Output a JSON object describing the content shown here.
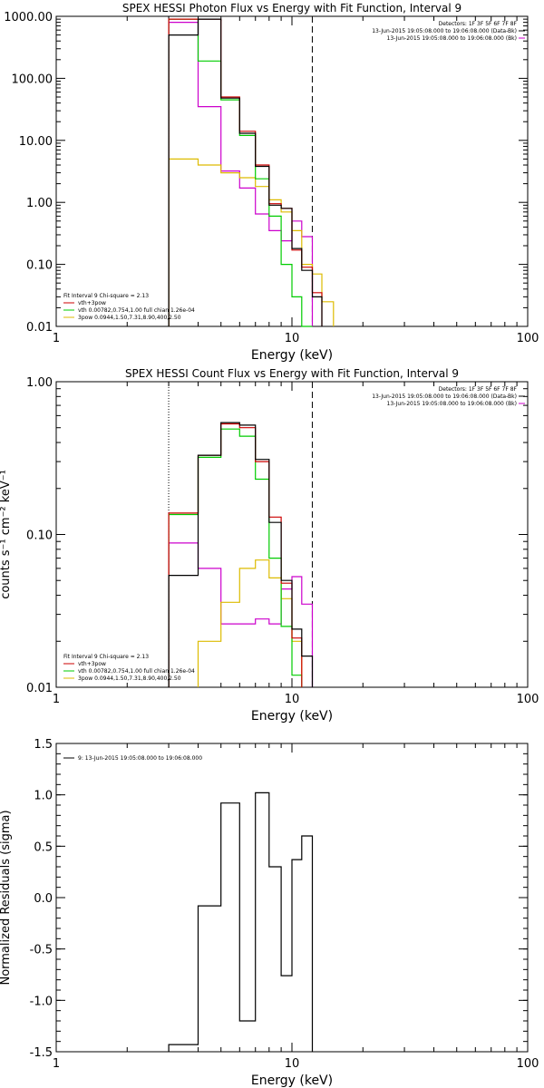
{
  "chart_data": [
    {
      "type": "line",
      "title": "SPEX HESSI Photon Flux vs Energy with Fit Function, Interval 9",
      "xlabel": "Energy (keV)",
      "ylabel": "",
      "xscale": "log",
      "yscale": "log",
      "xlim": [
        1,
        100
      ],
      "ylim": [
        0.01,
        1000
      ],
      "xticks": [
        {
          "v": 1,
          "label": "1"
        },
        {
          "v": 10,
          "label": "10"
        },
        {
          "v": 100,
          "label": "100"
        }
      ],
      "yticks": [
        {
          "v": 1000,
          "label": "1000.00"
        },
        {
          "v": 100,
          "label": "100.00"
        },
        {
          "v": 10,
          "label": "10.00"
        },
        {
          "v": 1,
          "label": "1.00"
        },
        {
          "v": 0.1,
          "label": "0.10"
        },
        {
          "v": 0.01,
          "label": "0.01"
        }
      ],
      "vlines": [
        {
          "x": 3.0,
          "style": "dotted"
        },
        {
          "x": 12.2,
          "style": "dashed"
        }
      ],
      "legend_right": [
        {
          "text": "Detectors: 1F 3F 5F 6F 7F 8F",
          "color": ""
        },
        {
          "text": "13-Jun-2015 19:05:08.000 to 19:06:08.000 (Data-Bk)",
          "color": "#000000"
        },
        {
          "text": "13-Jun-2015 19:05:08.000 to 19:06:08.000 (Bk)",
          "color": "#cc00cc"
        }
      ],
      "legend_left": [
        {
          "text": "Fit Interval 9   Chi-square = 2.13",
          "color": ""
        },
        {
          "text": "vth+3pow",
          "color": "#cc0000"
        },
        {
          "text": "vth 0.00782,0.754,1.00   full chian 1.26e-04",
          "color": "#00cc00"
        },
        {
          "text": "3pow 0.0944,1.50,7.31,8.90,400,2.50",
          "color": "#ddbb00"
        }
      ],
      "series": [
        {
          "name": "Data-Bk",
          "color": "#000000",
          "edges": [
            3.0,
            4.0,
            5.0,
            6.0,
            7.0,
            8.0,
            9.0,
            10.0,
            11.0,
            12.2,
            13.4
          ],
          "values": [
            500,
            900,
            48,
            13,
            3.8,
            0.9,
            0.8,
            0.18,
            0.08,
            0.03
          ]
        },
        {
          "name": "vth+3pow",
          "color": "#cc0000",
          "edges": [
            3.0,
            4.0,
            5.0,
            6.0,
            7.0,
            8.0,
            9.0,
            10.0,
            11.0,
            12.2,
            13.4
          ],
          "values": [
            900,
            900,
            50,
            14,
            4,
            0.95,
            0.8,
            0.17,
            0.09,
            0.035
          ]
        },
        {
          "name": "vth",
          "color": "#00cc00",
          "edges": [
            3.0,
            4.0,
            5.0,
            6.0,
            7.0,
            8.0,
            9.0,
            10.0,
            11.0,
            12.2
          ],
          "values": [
            900,
            190,
            45,
            12,
            2.4,
            0.6,
            0.1,
            0.03,
            0.01
          ]
        },
        {
          "name": "3pow",
          "color": "#ddbb00",
          "edges": [
            3.0,
            4.0,
            5.0,
            6.0,
            7.0,
            8.0,
            9.0,
            10.0,
            11.0,
            12.2,
            13.4,
            15.0
          ],
          "values": [
            5,
            4,
            3,
            2.5,
            1.8,
            1.1,
            0.7,
            0.35,
            0.1,
            0.07,
            0.025
          ]
        },
        {
          "name": "Bk",
          "color": "#cc00cc",
          "edges": [
            3.0,
            4.0,
            5.0,
            6.0,
            7.0,
            8.0,
            9.0,
            10.0,
            11.0,
            12.2
          ],
          "values": [
            800,
            35,
            3.2,
            1.7,
            0.65,
            0.35,
            0.24,
            0.5,
            0.28
          ]
        }
      ]
    },
    {
      "type": "line",
      "title": "SPEX HESSI Count Flux vs Energy with Fit Function, Interval 9",
      "xlabel": "Energy (keV)",
      "ylabel": "counts s⁻¹ cm⁻² keV⁻¹",
      "xscale": "log",
      "yscale": "log",
      "xlim": [
        1,
        100
      ],
      "ylim": [
        0.01,
        1
      ],
      "xticks": [
        {
          "v": 1,
          "label": "1"
        },
        {
          "v": 10,
          "label": "10"
        },
        {
          "v": 100,
          "label": "100"
        }
      ],
      "yticks": [
        {
          "v": 1,
          "label": "1.00"
        },
        {
          "v": 0.1,
          "label": "0.10"
        },
        {
          "v": 0.01,
          "label": "0.01"
        }
      ],
      "vlines": [
        {
          "x": 3.0,
          "style": "dotted"
        },
        {
          "x": 12.2,
          "style": "dashed"
        }
      ],
      "legend_right": [
        {
          "text": "Detectors: 1F 3F 5F 6F 7F 8F",
          "color": ""
        },
        {
          "text": "13-Jun-2015 19:05:08.000 to 19:06:08.000 (Data-Bk)",
          "color": "#000000"
        },
        {
          "text": "13-Jun-2015 19:05:08.000 to 19:06:08.000 (Bk)",
          "color": "#cc00cc"
        }
      ],
      "legend_left": [
        {
          "text": "Fit Interval 9   Chi-square = 2.13",
          "color": ""
        },
        {
          "text": "vth+3pow",
          "color": "#cc0000"
        },
        {
          "text": "vth 0.00782,0.754,1.00   full chian 1.26e-04",
          "color": "#00cc00"
        },
        {
          "text": "3pow 0.0944,1.50,7.31,8.90,400,2.50",
          "color": "#ddbb00"
        }
      ],
      "series": [
        {
          "name": "Data-Bk",
          "color": "#000000",
          "edges": [
            3.0,
            4.0,
            5.0,
            6.0,
            7.0,
            8.0,
            9.0,
            10.0,
            11.0,
            12.2
          ],
          "values": [
            0.054,
            0.33,
            0.54,
            0.52,
            0.31,
            0.12,
            0.05,
            0.024,
            0.016
          ]
        },
        {
          "name": "vth+3pow",
          "color": "#cc0000",
          "edges": [
            3.0,
            4.0,
            5.0,
            6.0,
            7.0,
            8.0,
            9.0,
            10.0,
            11.0
          ],
          "values": [
            0.138,
            0.33,
            0.53,
            0.5,
            0.3,
            0.13,
            0.048,
            0.021
          ]
        },
        {
          "name": "vth",
          "color": "#00cc00",
          "edges": [
            3.0,
            4.0,
            5.0,
            6.0,
            7.0,
            8.0,
            9.0,
            10.0,
            11.0
          ],
          "values": [
            0.135,
            0.32,
            0.49,
            0.44,
            0.23,
            0.07,
            0.025,
            0.012
          ]
        },
        {
          "name": "3pow",
          "color": "#ddbb00",
          "edges": [
            4.0,
            5.0,
            6.0,
            7.0,
            8.0,
            9.0,
            10.0,
            11.0
          ],
          "values": [
            0.02,
            0.036,
            0.06,
            0.068,
            0.052,
            0.038,
            0.02,
            0.012
          ]
        },
        {
          "name": "Bk",
          "color": "#cc00cc",
          "edges": [
            3.0,
            4.0,
            5.0,
            6.0,
            7.0,
            8.0,
            9.0,
            10.0,
            11.0,
            12.2
          ],
          "values": [
            0.088,
            0.06,
            0.026,
            0.026,
            0.028,
            0.026,
            0.044,
            0.053,
            0.035
          ]
        }
      ]
    },
    {
      "type": "line",
      "title": "",
      "xlabel": "Energy (keV)",
      "ylabel": "Normalized Residuals (sigma)",
      "xscale": "log",
      "yscale": "linear",
      "xlim": [
        1,
        100
      ],
      "ylim": [
        -1.5,
        1.5
      ],
      "xticks": [
        {
          "v": 1,
          "label": "1"
        },
        {
          "v": 10,
          "label": "10"
        },
        {
          "v": 100,
          "label": "100"
        }
      ],
      "yticks": [
        {
          "v": 1.5,
          "label": "1.5"
        },
        {
          "v": 1.0,
          "label": "1.0"
        },
        {
          "v": 0.5,
          "label": "0.5"
        },
        {
          "v": 0.0,
          "label": "0.0"
        },
        {
          "v": -0.5,
          "label": "-0.5"
        },
        {
          "v": -1.0,
          "label": "-1.0"
        },
        {
          "v": -1.5,
          "label": "-1.5"
        }
      ],
      "vlines": [],
      "legend_left": [
        {
          "text": "9: 13-Jun-2015 19:05:08.000 to 19:06:08.000",
          "color": "#000000"
        }
      ],
      "legend_right": [],
      "series": [
        {
          "name": "9: 13-Jun-2015 19:05:08.000 to 19:06:08.000",
          "color": "#000000",
          "edges": [
            3.0,
            4.0,
            5.0,
            6.0,
            7.0,
            8.0,
            9.0,
            10.0,
            11.0,
            12.2
          ],
          "values": [
            -1.43,
            -0.08,
            0.92,
            -1.2,
            1.02,
            0.3,
            -0.76,
            0.37,
            0.6
          ],
          "drop_to": -1.55
        }
      ]
    }
  ]
}
